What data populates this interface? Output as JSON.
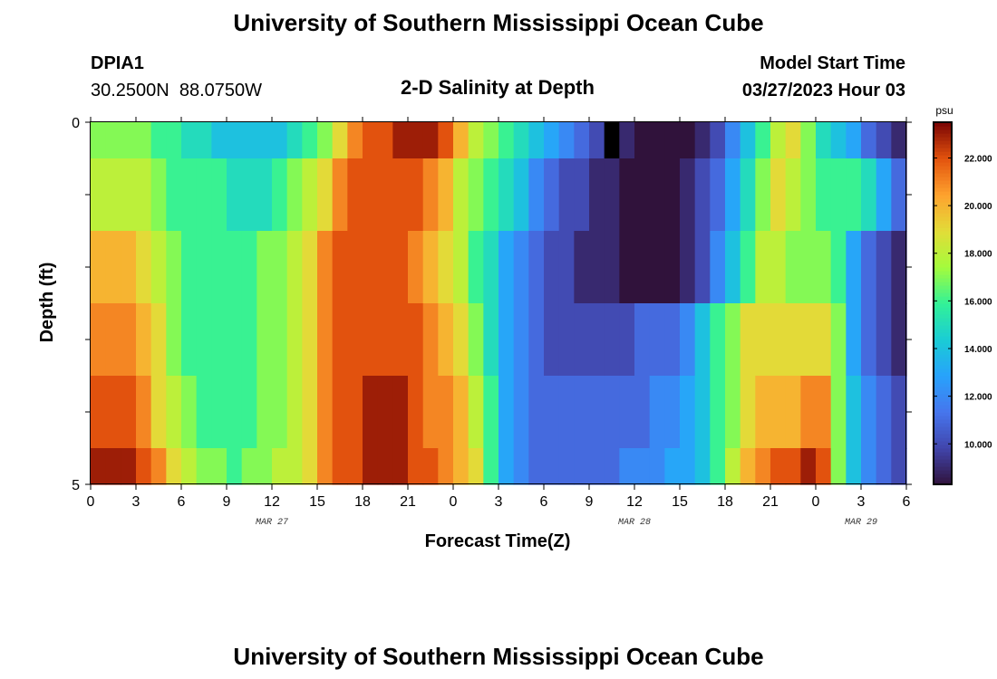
{
  "header": {
    "title": "University of Southern Mississippi Ocean Cube",
    "station": "DPIA1",
    "coordinates": "30.2500N  88.0750W",
    "plot_title": "2-D Salinity at Depth",
    "model_start_label": "Model Start Time",
    "model_start_value": "03/27/2023 Hour 03"
  },
  "footer": {
    "title": "University of Southern Mississippi Ocean Cube"
  },
  "colors": {
    "colormap": "turbo",
    "frame": "#000000",
    "missing": "#000000"
  },
  "chart_data": {
    "type": "heatmap",
    "title": "2-D Salinity at Depth",
    "xlabel": "Forecast Time(Z)",
    "ylabel": "Depth (ft)",
    "ylim": [
      0,
      5
    ],
    "y_ticks": [
      "0",
      "5"
    ],
    "x_range": [
      0,
      54
    ],
    "x_tick_labels": [
      "0",
      "3",
      "6",
      "9",
      "12",
      "15",
      "18",
      "21",
      "0",
      "3",
      "6",
      "9",
      "12",
      "15",
      "18",
      "21",
      "0",
      "3",
      "6"
    ],
    "date_labels": [
      {
        "label": "MAR 27",
        "x": 12
      },
      {
        "label": "MAR 28",
        "x": 36
      },
      {
        "label": "MAR 29",
        "x": 51
      }
    ],
    "depth_bins": [
      [
        0.0,
        0.5
      ],
      [
        0.5,
        1.5
      ],
      [
        1.5,
        2.5
      ],
      [
        2.5,
        3.5
      ],
      [
        3.5,
        4.5
      ],
      [
        4.5,
        5.0
      ]
    ],
    "time_step_hours": 1,
    "salinity_psu": [
      [
        17,
        17,
        17,
        17,
        16,
        16,
        15,
        15,
        14,
        14,
        14,
        14,
        14,
        15,
        16,
        17,
        19,
        21,
        22,
        22,
        23,
        23,
        23,
        22,
        20,
        18,
        17,
        16,
        15,
        14,
        13,
        12,
        11,
        10,
        9,
        9,
        8,
        8,
        8,
        8,
        9,
        10,
        12,
        14,
        16,
        18,
        19,
        17,
        15,
        14,
        13,
        11,
        10,
        9,
        8
      ],
      [
        18,
        18,
        18,
        18,
        17,
        16,
        16,
        16,
        16,
        15,
        15,
        15,
        16,
        17,
        18,
        19,
        21,
        22,
        22,
        22,
        22,
        22,
        21,
        20,
        18,
        17,
        16,
        15,
        14,
        12,
        11,
        10,
        10,
        9,
        9,
        8,
        8,
        8,
        8,
        9,
        10,
        11,
        13,
        15,
        17,
        19,
        18,
        17,
        16,
        16,
        16,
        15,
        13,
        11,
        9
      ],
      [
        20,
        20,
        20,
        19,
        18,
        17,
        16,
        16,
        16,
        16,
        16,
        17,
        17,
        18,
        19,
        21,
        22,
        22,
        22,
        22,
        22,
        21,
        20,
        19,
        18,
        16,
        15,
        13,
        12,
        11,
        10,
        10,
        9,
        9,
        9,
        8,
        8,
        8,
        8,
        9,
        10,
        12,
        14,
        16,
        18,
        18,
        17,
        17,
        17,
        16,
        13,
        11,
        10,
        9,
        9
      ],
      [
        21,
        21,
        21,
        20,
        19,
        17,
        16,
        16,
        16,
        16,
        16,
        17,
        17,
        18,
        19,
        21,
        22,
        22,
        22,
        22,
        22,
        22,
        21,
        20,
        19,
        17,
        15,
        13,
        12,
        11,
        10,
        10,
        10,
        10,
        10,
        10,
        11,
        11,
        11,
        12,
        14,
        16,
        17,
        19,
        19,
        19,
        19,
        19,
        19,
        17,
        13,
        11,
        10,
        9,
        9
      ],
      [
        22,
        22,
        22,
        21,
        19,
        18,
        17,
        16,
        16,
        16,
        16,
        17,
        17,
        18,
        19,
        21,
        22,
        22,
        23,
        23,
        23,
        22,
        21,
        21,
        20,
        18,
        16,
        13,
        12,
        11,
        11,
        11,
        11,
        11,
        11,
        11,
        11,
        12,
        12,
        13,
        14,
        16,
        17,
        19,
        20,
        20,
        20,
        21,
        21,
        17,
        14,
        12,
        11,
        10,
        10
      ],
      [
        23,
        23,
        23,
        22,
        21,
        19,
        18,
        17,
        17,
        16,
        17,
        17,
        18,
        18,
        19,
        21,
        22,
        22,
        23,
        23,
        23,
        22,
        22,
        21,
        20,
        19,
        16,
        13,
        12,
        11,
        11,
        11,
        11,
        11,
        11,
        12,
        12,
        12,
        13,
        13,
        14,
        16,
        18,
        20,
        21,
        22,
        22,
        23,
        22,
        17,
        14,
        12,
        11,
        10,
        10
      ]
    ],
    "missing_cells": [
      [
        0,
        34
      ]
    ],
    "colorbar": {
      "unit": "psu",
      "range": [
        8.3,
        23.5
      ],
      "tick_labels": [
        "10.000",
        "12.000",
        "14.000",
        "16.000",
        "18.000",
        "20.000",
        "22.000"
      ],
      "tick_values": [
        10,
        12,
        14,
        16,
        18,
        20,
        22
      ]
    }
  }
}
